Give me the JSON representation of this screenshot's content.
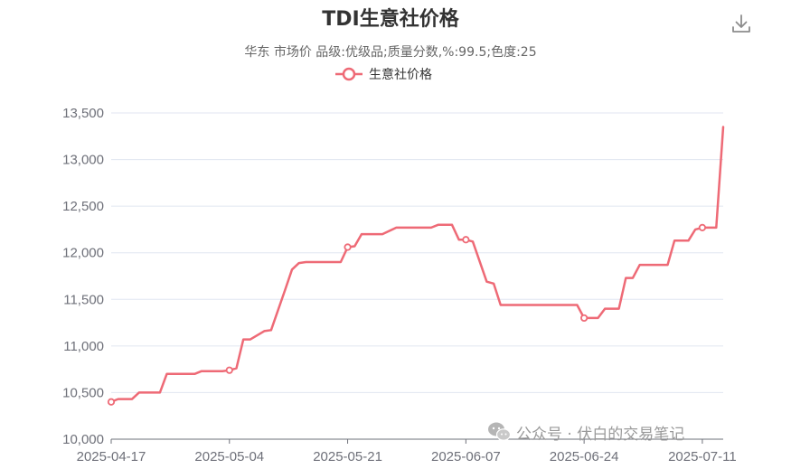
{
  "title": "TDI生意社价格",
  "subtitle": "华东 市场价 品级:优级品;质量分数,%:99.5;色度:25",
  "legend": [
    "生意社价格"
  ],
  "download_icon": "download-icon",
  "watermark": "公众号 · 伏白的交易笔记",
  "watermark_icon": "wechat-icon",
  "colors": {
    "series": "#ee6a76",
    "grid": "#e0e6f1",
    "axis": "#6e7079"
  },
  "chart_data": {
    "type": "line",
    "title": "TDI生意社价格",
    "subtitle": "华东 市场价 品级:优级品;质量分数,%:99.5;色度:25",
    "xlabel": "",
    "ylabel": "",
    "ylim": [
      10000,
      13500
    ],
    "yticks": [
      10000,
      10500,
      11000,
      11500,
      12000,
      12500,
      13000,
      13500
    ],
    "xlim": [
      "2025-04-17",
      "2025-07-14"
    ],
    "xticks": [
      "2025-04-17",
      "2025-05-04",
      "2025-05-21",
      "2025-06-07",
      "2025-06-24",
      "2025-07-11"
    ],
    "grid": true,
    "legend_position": "top-center",
    "series": [
      {
        "name": "生意社价格",
        "markers": [
          "2025-04-17",
          "2025-05-04",
          "2025-05-21",
          "2025-06-07",
          "2025-06-24",
          "2025-07-11"
        ],
        "x": [
          "2025-04-17",
          "2025-04-18",
          "2025-04-20",
          "2025-04-21",
          "2025-04-24",
          "2025-04-25",
          "2025-04-29",
          "2025-04-30",
          "2025-05-03",
          "2025-05-04",
          "2025-05-05",
          "2025-05-06",
          "2025-05-07",
          "2025-05-09",
          "2025-05-10",
          "2025-05-12",
          "2025-05-13",
          "2025-05-14",
          "2025-05-15",
          "2025-05-20",
          "2025-05-21",
          "2025-05-22",
          "2025-05-23",
          "2025-05-26",
          "2025-05-28",
          "2025-06-02",
          "2025-06-03",
          "2025-06-05",
          "2025-06-06",
          "2025-06-07",
          "2025-06-08",
          "2025-06-10",
          "2025-06-11",
          "2025-06-12",
          "2025-06-23",
          "2025-06-24",
          "2025-06-26",
          "2025-06-27",
          "2025-06-29",
          "2025-06-30",
          "2025-07-01",
          "2025-07-02",
          "2025-07-03",
          "2025-07-06",
          "2025-07-07",
          "2025-07-09",
          "2025-07-10",
          "2025-07-11",
          "2025-07-12",
          "2025-07-13",
          "2025-07-14"
        ],
        "values": [
          10400,
          10430,
          10430,
          10500,
          10500,
          10700,
          10700,
          10730,
          10730,
          10740,
          10760,
          11070,
          11070,
          11160,
          11170,
          11600,
          11820,
          11890,
          11900,
          11900,
          12060,
          12070,
          12200,
          12200,
          12270,
          12270,
          12300,
          12300,
          12140,
          12140,
          12120,
          11690,
          11670,
          11440,
          11440,
          11300,
          11300,
          11400,
          11400,
          11730,
          11730,
          11870,
          11870,
          11870,
          12130,
          12130,
          12250,
          12270,
          12270,
          12270,
          13350
        ]
      }
    ]
  }
}
